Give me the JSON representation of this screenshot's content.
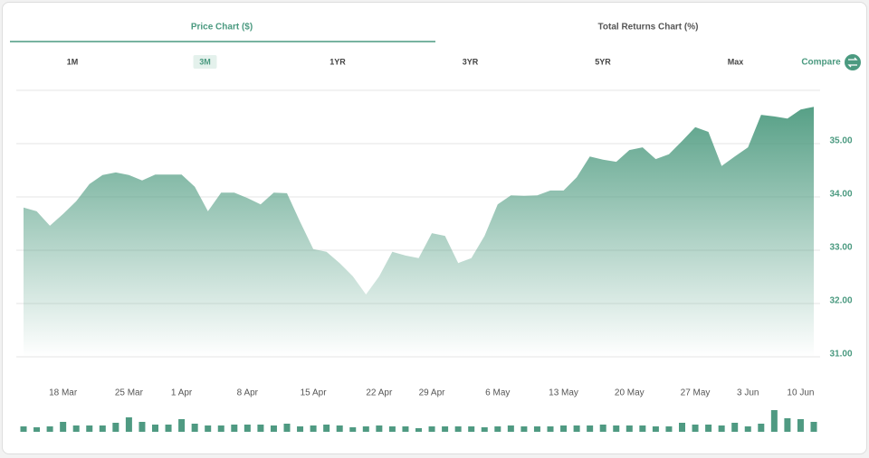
{
  "ui": {
    "tabs": [
      "Price Chart ($)",
      "Total Returns Chart (%)"
    ],
    "active_tab": 0,
    "ranges": [
      "1M",
      "3M",
      "1YR",
      "3YR",
      "5YR",
      "Max"
    ],
    "active_range": 1,
    "compare": "Compare"
  },
  "chart_data": {
    "type": "area",
    "color": "#4e9b80",
    "grid": true,
    "categories": [
      null,
      null,
      null,
      "18 Mar",
      null,
      null,
      null,
      null,
      "25 Mar",
      null,
      null,
      null,
      "1 Apr",
      null,
      null,
      null,
      null,
      "8 Apr",
      null,
      null,
      null,
      null,
      "15 Apr",
      null,
      null,
      null,
      null,
      "22 Apr",
      null,
      null,
      null,
      "29 Apr",
      null,
      null,
      null,
      null,
      "6 May",
      null,
      null,
      null,
      null,
      "13 May",
      null,
      null,
      null,
      null,
      "20 May",
      null,
      null,
      null,
      null,
      "27 May",
      null,
      null,
      null,
      "3 Jun",
      null,
      null,
      null,
      "10 Jun",
      null
    ],
    "values": [
      33.8,
      33.73,
      33.46,
      33.68,
      33.92,
      34.24,
      34.41,
      34.46,
      34.41,
      34.31,
      34.42,
      34.42,
      34.42,
      34.19,
      33.73,
      34.08,
      34.08,
      33.98,
      33.86,
      34.08,
      34.07,
      33.53,
      33.02,
      32.97,
      32.76,
      32.51,
      32.17,
      32.51,
      32.97,
      32.9,
      32.85,
      33.32,
      33.27,
      32.76,
      32.85,
      33.27,
      33.86,
      34.03,
      34.02,
      34.03,
      34.12,
      34.12,
      34.37,
      34.76,
      34.7,
      34.66,
      34.88,
      34.93,
      34.71,
      34.8,
      35.05,
      35.31,
      35.22,
      34.58,
      34.76,
      34.93,
      35.54,
      35.51,
      35.47,
      35.64,
      35.69
    ],
    "ylim": [
      31,
      36
    ],
    "yticks": [
      {
        "value": 31,
        "label": "31.00"
      },
      {
        "value": 32,
        "label": "32.00"
      },
      {
        "value": 33,
        "label": "33.00"
      },
      {
        "value": 34,
        "label": "34.00"
      },
      {
        "value": 35,
        "label": "35.00"
      }
    ],
    "volume": {
      "color": "#4f9a82",
      "ylim": [
        0,
        25
      ],
      "values": [
        6,
        5,
        6,
        11,
        7,
        7,
        7,
        10,
        16,
        11,
        8,
        8,
        14,
        9,
        7,
        7,
        8,
        8,
        8,
        7,
        9,
        6,
        7,
        8,
        7,
        5,
        6,
        7,
        6,
        6,
        4,
        6,
        6,
        6,
        6,
        5,
        6,
        7,
        6,
        6,
        6,
        7,
        7,
        7,
        8,
        7,
        7,
        7,
        6,
        6,
        10,
        8,
        8,
        7,
        10,
        6,
        9,
        24,
        15,
        14,
        11
      ]
    }
  }
}
